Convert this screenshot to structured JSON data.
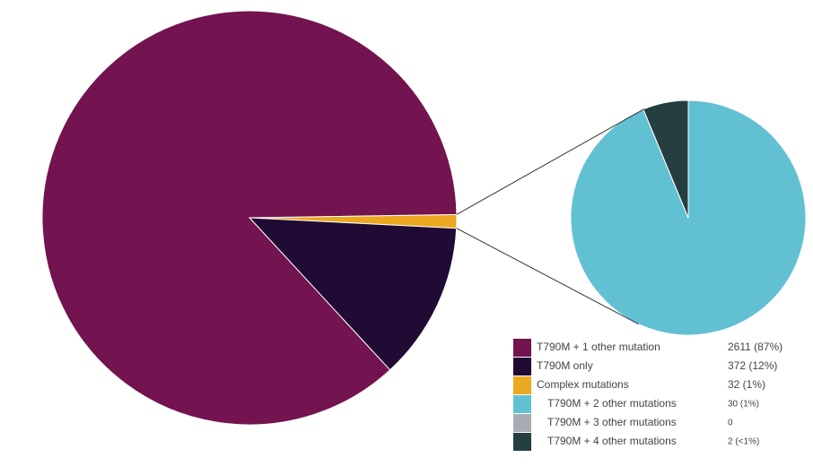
{
  "chart_data": {
    "type": "pie",
    "categories": [
      "T790M + 1 other mutation",
      "T790M only",
      "Complex mutations"
    ],
    "values": [
      2611,
      372,
      32
    ],
    "value_labels": [
      "2611 (87%)",
      "372 (12%)",
      "32 (1%)"
    ],
    "colors": [
      "#73134f",
      "#1f0b33",
      "#eba820"
    ],
    "detail": {
      "categories": [
        "T790M + 2 other mutations",
        "T790M + 3 other mutations",
        "T790M + 4 other mutations"
      ],
      "values": [
        30,
        0,
        2
      ],
      "value_labels": [
        "30 (1%)",
        "0",
        "2 (<1%)"
      ],
      "colors": [
        "#62c0d3",
        "#a6adb2",
        "#253e3f"
      ]
    }
  }
}
